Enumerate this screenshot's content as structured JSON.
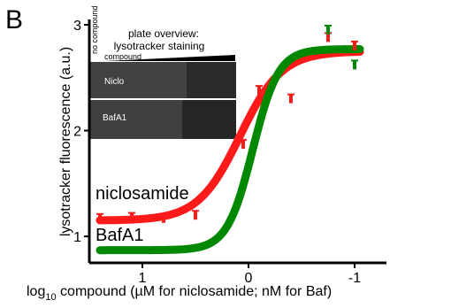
{
  "panel_label": "B",
  "chart_data": {
    "type": "line",
    "xlabel_prefix": "log",
    "xlabel_sub": "10",
    "xlabel_rest": " compound (µM for niclosamide; nM for Baf)",
    "ylabel": "lysotracker fluorescence (a.u.)",
    "x_ticks": [
      "1",
      "0",
      "-1"
    ],
    "y_ticks": [
      "1",
      "2",
      "3"
    ],
    "xlim": [
      1.5,
      -1.3
    ],
    "ylim": [
      0.75,
      3.05
    ],
    "series": [
      {
        "name": "niclosamide",
        "color": "#ff1a1a",
        "curve": {
          "bottom": 1.15,
          "top": 2.75,
          "ec50_log": 0.08,
          "hill": 2.2
        },
        "points": [
          [
            1.4,
            1.17
          ],
          [
            1.1,
            1.18
          ],
          [
            0.8,
            1.17
          ],
          [
            0.5,
            1.2
          ],
          [
            0.05,
            1.87
          ],
          [
            -0.1,
            2.38
          ],
          [
            -0.4,
            2.3
          ],
          [
            -0.75,
            2.88
          ],
          [
            -1.0,
            2.8
          ]
        ]
      },
      {
        "name": "BafA1",
        "color": "#008800",
        "curve": {
          "bottom": 0.87,
          "top": 2.77,
          "ec50_log": -0.04,
          "hill": 3.6
        },
        "points": [
          [
            -0.75,
            2.95
          ],
          [
            -1.0,
            2.62
          ]
        ]
      }
    ]
  },
  "inset": {
    "title_line1": "plate overview:",
    "title_line2": "lysotracker staining",
    "no_compound": "no compound",
    "compound": "compound",
    "row1": "Niclo",
    "row2": "BafA1"
  }
}
